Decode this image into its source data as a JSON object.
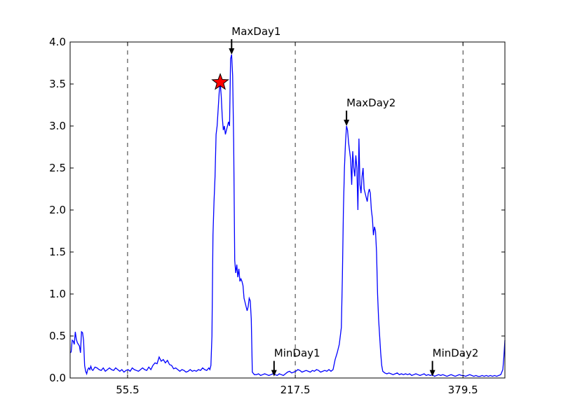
{
  "chart_data": {
    "type": "line",
    "title": "",
    "xlabel": "",
    "ylabel": "",
    "xlim": [
      0,
      420
    ],
    "ylim": [
      0,
      4.0
    ],
    "x_ticks": [
      55.5,
      217.5,
      379.5
    ],
    "x_tick_labels": [
      "55.5",
      "217.5",
      "379.5"
    ],
    "y_ticks": [
      0.0,
      0.5,
      1.0,
      1.5,
      2.0,
      2.5,
      3.0,
      3.5,
      4.0
    ],
    "y_tick_labels": [
      "0.0",
      "0.5",
      "1.0",
      "1.5",
      "2.0",
      "2.5",
      "3.0",
      "3.5",
      "4.0"
    ],
    "grid": "vertical dashed lines at x ticks",
    "line_color": "#0000ff",
    "marker_color": "#ff0000",
    "series": [
      {
        "points": [
          [
            0,
            0.3
          ],
          [
            1,
            0.31
          ],
          [
            2,
            0.45
          ],
          [
            3,
            0.44
          ],
          [
            4,
            0.4
          ],
          [
            5,
            0.55
          ],
          [
            6,
            0.46
          ],
          [
            7,
            0.42
          ],
          [
            8,
            0.4
          ],
          [
            9,
            0.38
          ],
          [
            10,
            0.3
          ],
          [
            11,
            0.55
          ],
          [
            12,
            0.54
          ],
          [
            13,
            0.45
          ],
          [
            14,
            0.15
          ],
          [
            15,
            0.08
          ],
          [
            16,
            0.05
          ],
          [
            17,
            0.1
          ],
          [
            18,
            0.12
          ],
          [
            19,
            0.1
          ],
          [
            20,
            0.14
          ],
          [
            21,
            0.1
          ],
          [
            22,
            0.09
          ],
          [
            24,
            0.13
          ],
          [
            26,
            0.12
          ],
          [
            28,
            0.1
          ],
          [
            30,
            0.09
          ],
          [
            32,
            0.12
          ],
          [
            34,
            0.08
          ],
          [
            36,
            0.1
          ],
          [
            38,
            0.12
          ],
          [
            40,
            0.1
          ],
          [
            42,
            0.09
          ],
          [
            44,
            0.12
          ],
          [
            46,
            0.1
          ],
          [
            48,
            0.08
          ],
          [
            50,
            0.1
          ],
          [
            52,
            0.07
          ],
          [
            54,
            0.09
          ],
          [
            56,
            0.1
          ],
          [
            58,
            0.08
          ],
          [
            60,
            0.12
          ],
          [
            62,
            0.1
          ],
          [
            64,
            0.09
          ],
          [
            66,
            0.08
          ],
          [
            68,
            0.1
          ],
          [
            70,
            0.12
          ],
          [
            72,
            0.1
          ],
          [
            74,
            0.09
          ],
          [
            76,
            0.13
          ],
          [
            78,
            0.1
          ],
          [
            80,
            0.15
          ],
          [
            82,
            0.18
          ],
          [
            84,
            0.17
          ],
          [
            86,
            0.25
          ],
          [
            88,
            0.2
          ],
          [
            90,
            0.22
          ],
          [
            92,
            0.18
          ],
          [
            94,
            0.21
          ],
          [
            96,
            0.16
          ],
          [
            98,
            0.15
          ],
          [
            100,
            0.11
          ],
          [
            102,
            0.12
          ],
          [
            104,
            0.1
          ],
          [
            106,
            0.08
          ],
          [
            108,
            0.1
          ],
          [
            110,
            0.09
          ],
          [
            112,
            0.07
          ],
          [
            114,
            0.08
          ],
          [
            116,
            0.1
          ],
          [
            118,
            0.08
          ],
          [
            120,
            0.09
          ],
          [
            122,
            0.08
          ],
          [
            124,
            0.1
          ],
          [
            126,
            0.09
          ],
          [
            128,
            0.12
          ],
          [
            130,
            0.1
          ],
          [
            132,
            0.09
          ],
          [
            134,
            0.12
          ],
          [
            135,
            0.1
          ],
          [
            136,
            0.15
          ],
          [
            137,
            0.5
          ],
          [
            138,
            1.7
          ],
          [
            139,
            2.1
          ],
          [
            140,
            2.4
          ],
          [
            141,
            2.9
          ],
          [
            142,
            3.0
          ],
          [
            143,
            3.2
          ],
          [
            144,
            3.4
          ],
          [
            145,
            3.52
          ],
          [
            146,
            3.35
          ],
          [
            147,
            3.1
          ],
          [
            148,
            2.95
          ],
          [
            149,
            3.0
          ],
          [
            150,
            2.9
          ],
          [
            151,
            2.95
          ],
          [
            152,
            3.0
          ],
          [
            153,
            3.05
          ],
          [
            154,
            3.0
          ],
          [
            155,
            3.8
          ],
          [
            156,
            3.85
          ],
          [
            157,
            3.6
          ],
          [
            158,
            2.8
          ],
          [
            159,
            1.4
          ],
          [
            160,
            1.25
          ],
          [
            161,
            1.35
          ],
          [
            162,
            1.2
          ],
          [
            163,
            1.3
          ],
          [
            164,
            1.15
          ],
          [
            165,
            1.18
          ],
          [
            166,
            1.15
          ],
          [
            167,
            1.1
          ],
          [
            168,
            0.95
          ],
          [
            169,
            0.9
          ],
          [
            170,
            0.85
          ],
          [
            171,
            0.8
          ],
          [
            172,
            0.85
          ],
          [
            173,
            0.95
          ],
          [
            174,
            0.92
          ],
          [
            175,
            0.7
          ],
          [
            176,
            0.07
          ],
          [
            178,
            0.04
          ],
          [
            180,
            0.04
          ],
          [
            182,
            0.05
          ],
          [
            184,
            0.03
          ],
          [
            186,
            0.04
          ],
          [
            188,
            0.05
          ],
          [
            190,
            0.04
          ],
          [
            192,
            0.03
          ],
          [
            194,
            0.04
          ],
          [
            196,
            0.05
          ],
          [
            198,
            0.04
          ],
          [
            200,
            0.03
          ],
          [
            202,
            0.05
          ],
          [
            204,
            0.04
          ],
          [
            206,
            0.03
          ],
          [
            208,
            0.05
          ],
          [
            210,
            0.07
          ],
          [
            212,
            0.08
          ],
          [
            214,
            0.06
          ],
          [
            216,
            0.07
          ],
          [
            218,
            0.08
          ],
          [
            220,
            0.1
          ],
          [
            222,
            0.09
          ],
          [
            224,
            0.07
          ],
          [
            226,
            0.08
          ],
          [
            228,
            0.09
          ],
          [
            230,
            0.08
          ],
          [
            232,
            0.07
          ],
          [
            234,
            0.09
          ],
          [
            236,
            0.08
          ],
          [
            238,
            0.1
          ],
          [
            240,
            0.09
          ],
          [
            242,
            0.07
          ],
          [
            244,
            0.08
          ],
          [
            246,
            0.09
          ],
          [
            248,
            0.08
          ],
          [
            250,
            0.1
          ],
          [
            252,
            0.08
          ],
          [
            254,
            0.1
          ],
          [
            256,
            0.22
          ],
          [
            258,
            0.3
          ],
          [
            260,
            0.4
          ],
          [
            262,
            0.6
          ],
          [
            263,
            1.2
          ],
          [
            264,
            2.0
          ],
          [
            265,
            2.5
          ],
          [
            266,
            2.8
          ],
          [
            267,
            3.0
          ],
          [
            268,
            2.95
          ],
          [
            269,
            2.8
          ],
          [
            270,
            2.7
          ],
          [
            271,
            2.6
          ],
          [
            272,
            2.3
          ],
          [
            273,
            2.7
          ],
          [
            274,
            2.5
          ],
          [
            275,
            2.4
          ],
          [
            276,
            2.65
          ],
          [
            277,
            2.5
          ],
          [
            278,
            2.0
          ],
          [
            279,
            2.85
          ],
          [
            280,
            2.3
          ],
          [
            281,
            2.2
          ],
          [
            282,
            2.4
          ],
          [
            283,
            2.5
          ],
          [
            284,
            2.25
          ],
          [
            285,
            2.2
          ],
          [
            286,
            2.15
          ],
          [
            287,
            2.1
          ],
          [
            288,
            2.2
          ],
          [
            289,
            2.25
          ],
          [
            290,
            2.2
          ],
          [
            291,
            2.0
          ],
          [
            292,
            1.9
          ],
          [
            293,
            1.7
          ],
          [
            294,
            1.8
          ],
          [
            295,
            1.75
          ],
          [
            296,
            1.5
          ],
          [
            297,
            1.0
          ],
          [
            298,
            0.7
          ],
          [
            299,
            0.5
          ],
          [
            300,
            0.3
          ],
          [
            301,
            0.15
          ],
          [
            302,
            0.08
          ],
          [
            304,
            0.06
          ],
          [
            306,
            0.05
          ],
          [
            308,
            0.06
          ],
          [
            310,
            0.05
          ],
          [
            312,
            0.04
          ],
          [
            314,
            0.05
          ],
          [
            316,
            0.06
          ],
          [
            318,
            0.04
          ],
          [
            320,
            0.05
          ],
          [
            322,
            0.04
          ],
          [
            324,
            0.05
          ],
          [
            326,
            0.04
          ],
          [
            328,
            0.05
          ],
          [
            330,
            0.03
          ],
          [
            332,
            0.04
          ],
          [
            334,
            0.05
          ],
          [
            336,
            0.04
          ],
          [
            338,
            0.03
          ],
          [
            340,
            0.04
          ],
          [
            342,
            0.05
          ],
          [
            344,
            0.03
          ],
          [
            346,
            0.04
          ],
          [
            348,
            0.03
          ],
          [
            350,
            0.04
          ],
          [
            352,
            0.02
          ],
          [
            354,
            0.03
          ],
          [
            356,
            0.04
          ],
          [
            358,
            0.03
          ],
          [
            360,
            0.04
          ],
          [
            362,
            0.03
          ],
          [
            364,
            0.02
          ],
          [
            366,
            0.03
          ],
          [
            368,
            0.04
          ],
          [
            370,
            0.03
          ],
          [
            372,
            0.02
          ],
          [
            374,
            0.03
          ],
          [
            376,
            0.04
          ],
          [
            378,
            0.03
          ],
          [
            380,
            0.03
          ],
          [
            382,
            0.02
          ],
          [
            384,
            0.03
          ],
          [
            386,
            0.04
          ],
          [
            388,
            0.03
          ],
          [
            390,
            0.02
          ],
          [
            392,
            0.03
          ],
          [
            394,
            0.02
          ],
          [
            396,
            0.02
          ],
          [
            398,
            0.03
          ],
          [
            400,
            0.02
          ],
          [
            402,
            0.03
          ],
          [
            404,
            0.02
          ],
          [
            406,
            0.03
          ],
          [
            408,
            0.02
          ],
          [
            410,
            0.03
          ],
          [
            412,
            0.02
          ],
          [
            414,
            0.03
          ],
          [
            416,
            0.04
          ],
          [
            418,
            0.1
          ],
          [
            419,
            0.25
          ],
          [
            420,
            0.45
          ]
        ]
      }
    ],
    "star_marker": {
      "x": 145,
      "y": 3.52
    },
    "annotations": [
      {
        "label": "MaxDay1",
        "x": 156,
        "y": 3.85
      },
      {
        "label": "MinDay1",
        "x": 197,
        "y": 0.02
      },
      {
        "label": "MaxDay2",
        "x": 267,
        "y": 3.0
      },
      {
        "label": "MinDay2",
        "x": 350,
        "y": 0.02
      }
    ]
  }
}
